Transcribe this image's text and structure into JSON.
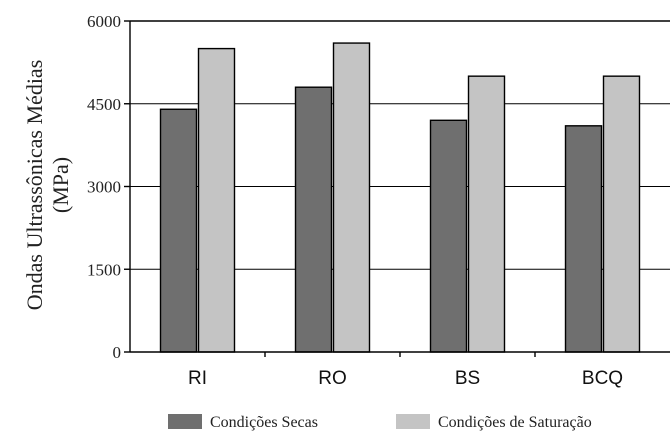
{
  "chart_data": {
    "type": "bar",
    "categories": [
      "RI",
      "RO",
      "BS",
      "BCQ"
    ],
    "series": [
      {
        "name": "Condições Secas",
        "values": [
          4400,
          4800,
          4200,
          4100
        ],
        "color": "#6f6f6f"
      },
      {
        "name": "Condições de Saturação",
        "values": [
          5500,
          5600,
          5000,
          5000
        ],
        "color": "#c4c4c4"
      }
    ],
    "ylabel_lines": [
      "Ondas Ultrassônicas Médias",
      "(MPa)"
    ],
    "xlabel": "",
    "ylim": [
      0,
      6000
    ],
    "yticks": [
      "0",
      "1500",
      "3000",
      "4500",
      "6000"
    ],
    "ytick_values": [
      0,
      1500,
      3000,
      4500,
      6000
    ],
    "grid": true,
    "legend_position": "bottom"
  }
}
